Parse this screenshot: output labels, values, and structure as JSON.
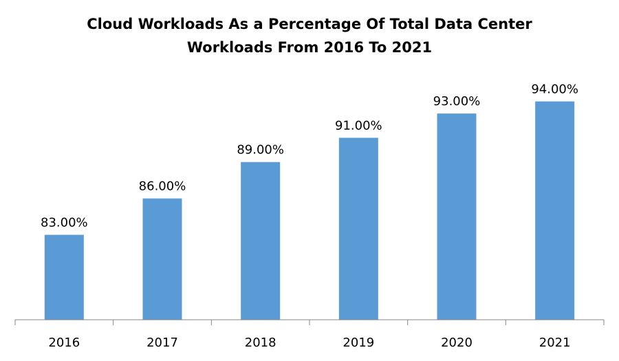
{
  "chart_data": {
    "type": "bar",
    "title": [
      "Cloud Workloads As a Percentage Of Total Data Center",
      "Workloads From 2016 To 2021"
    ],
    "categories": [
      "2016",
      "2017",
      "2018",
      "2019",
      "2020",
      "2021"
    ],
    "values": [
      83,
      86,
      89,
      91,
      93,
      94
    ],
    "data_labels": [
      "83.00%",
      "86.00%",
      "89.00%",
      "91.00%",
      "93.00%",
      "94.00%"
    ],
    "xlabel": "",
    "ylabel": "",
    "ylim": [
      76,
      100
    ],
    "grid": false,
    "bar_color": "#5b9bd5"
  }
}
